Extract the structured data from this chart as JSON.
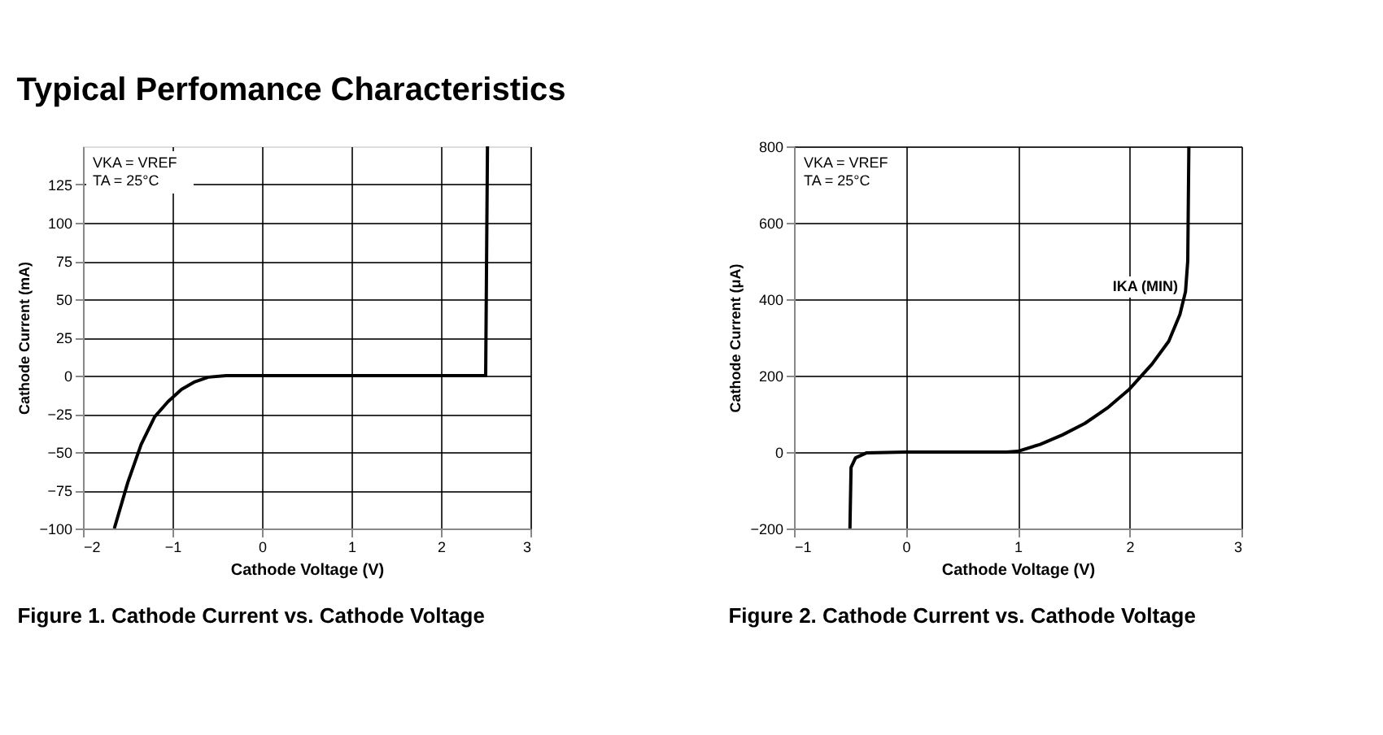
{
  "chart_data": [
    {
      "type": "line",
      "title": "Figure 1. Cathode Current vs. Cathode Voltage",
      "xlabel": "Cathode Voltage (V)",
      "ylabel": "Cathode Current (mA)",
      "annotations": [
        "Typical Perfomance Characteristics",
        "VKA = VREF",
        "TA = 25°C"
      ],
      "series": [
        {
          "color": "#000000",
          "x": [
            -1.65,
            -1.5,
            -1.35,
            -1.2,
            -1.05,
            -0.9,
            -0.75,
            -0.6,
            -0.4,
            0,
            1,
            2,
            2.5,
            2.52
          ],
          "values": [
            -100,
            -70,
            -45,
            -27,
            -17,
            -9,
            -4,
            -1,
            0,
            0,
            0,
            0,
            0,
            150
          ]
        }
      ],
      "xlim": [
        -2,
        3
      ],
      "xticks": [
        -2,
        -1,
        0,
        1,
        2,
        3
      ],
      "ylim": [
        -100,
        150
      ],
      "yticks": [
        -100,
        -75,
        -50,
        -25,
        0,
        25,
        50,
        75,
        100,
        125
      ],
      "grid": true,
      "line_style": "solid"
    },
    {
      "type": "line",
      "title": "Figure 2. Cathode Current vs. Cathode Voltage",
      "xlabel": "Cathode Voltage (V)",
      "ylabel": "Cathode Current (μA)",
      "annotations": [
        "VKA = VREF",
        "TA = 25°C",
        "IKA (MIN)"
      ],
      "series": [
        {
          "color": "#000000",
          "x": [
            -0.5,
            -0.49,
            -0.45,
            -0.35,
            0,
            0.9,
            1.0,
            1.2,
            1.4,
            1.6,
            1.8,
            2.0,
            2.2,
            2.35,
            2.45,
            2.5,
            2.52,
            2.53
          ],
          "values": [
            -200,
            -40,
            -15,
            -2,
            0,
            0,
            2,
            20,
            45,
            75,
            115,
            165,
            230,
            290,
            360,
            420,
            500,
            800
          ]
        }
      ],
      "xlim": [
        -1,
        3
      ],
      "xticks": [
        -1,
        0,
        1,
        2,
        3
      ],
      "ylim": [
        -200,
        800
      ],
      "yticks": [
        -200,
        0,
        200,
        400,
        600,
        800
      ],
      "grid": true,
      "line_style": "solid"
    }
  ]
}
